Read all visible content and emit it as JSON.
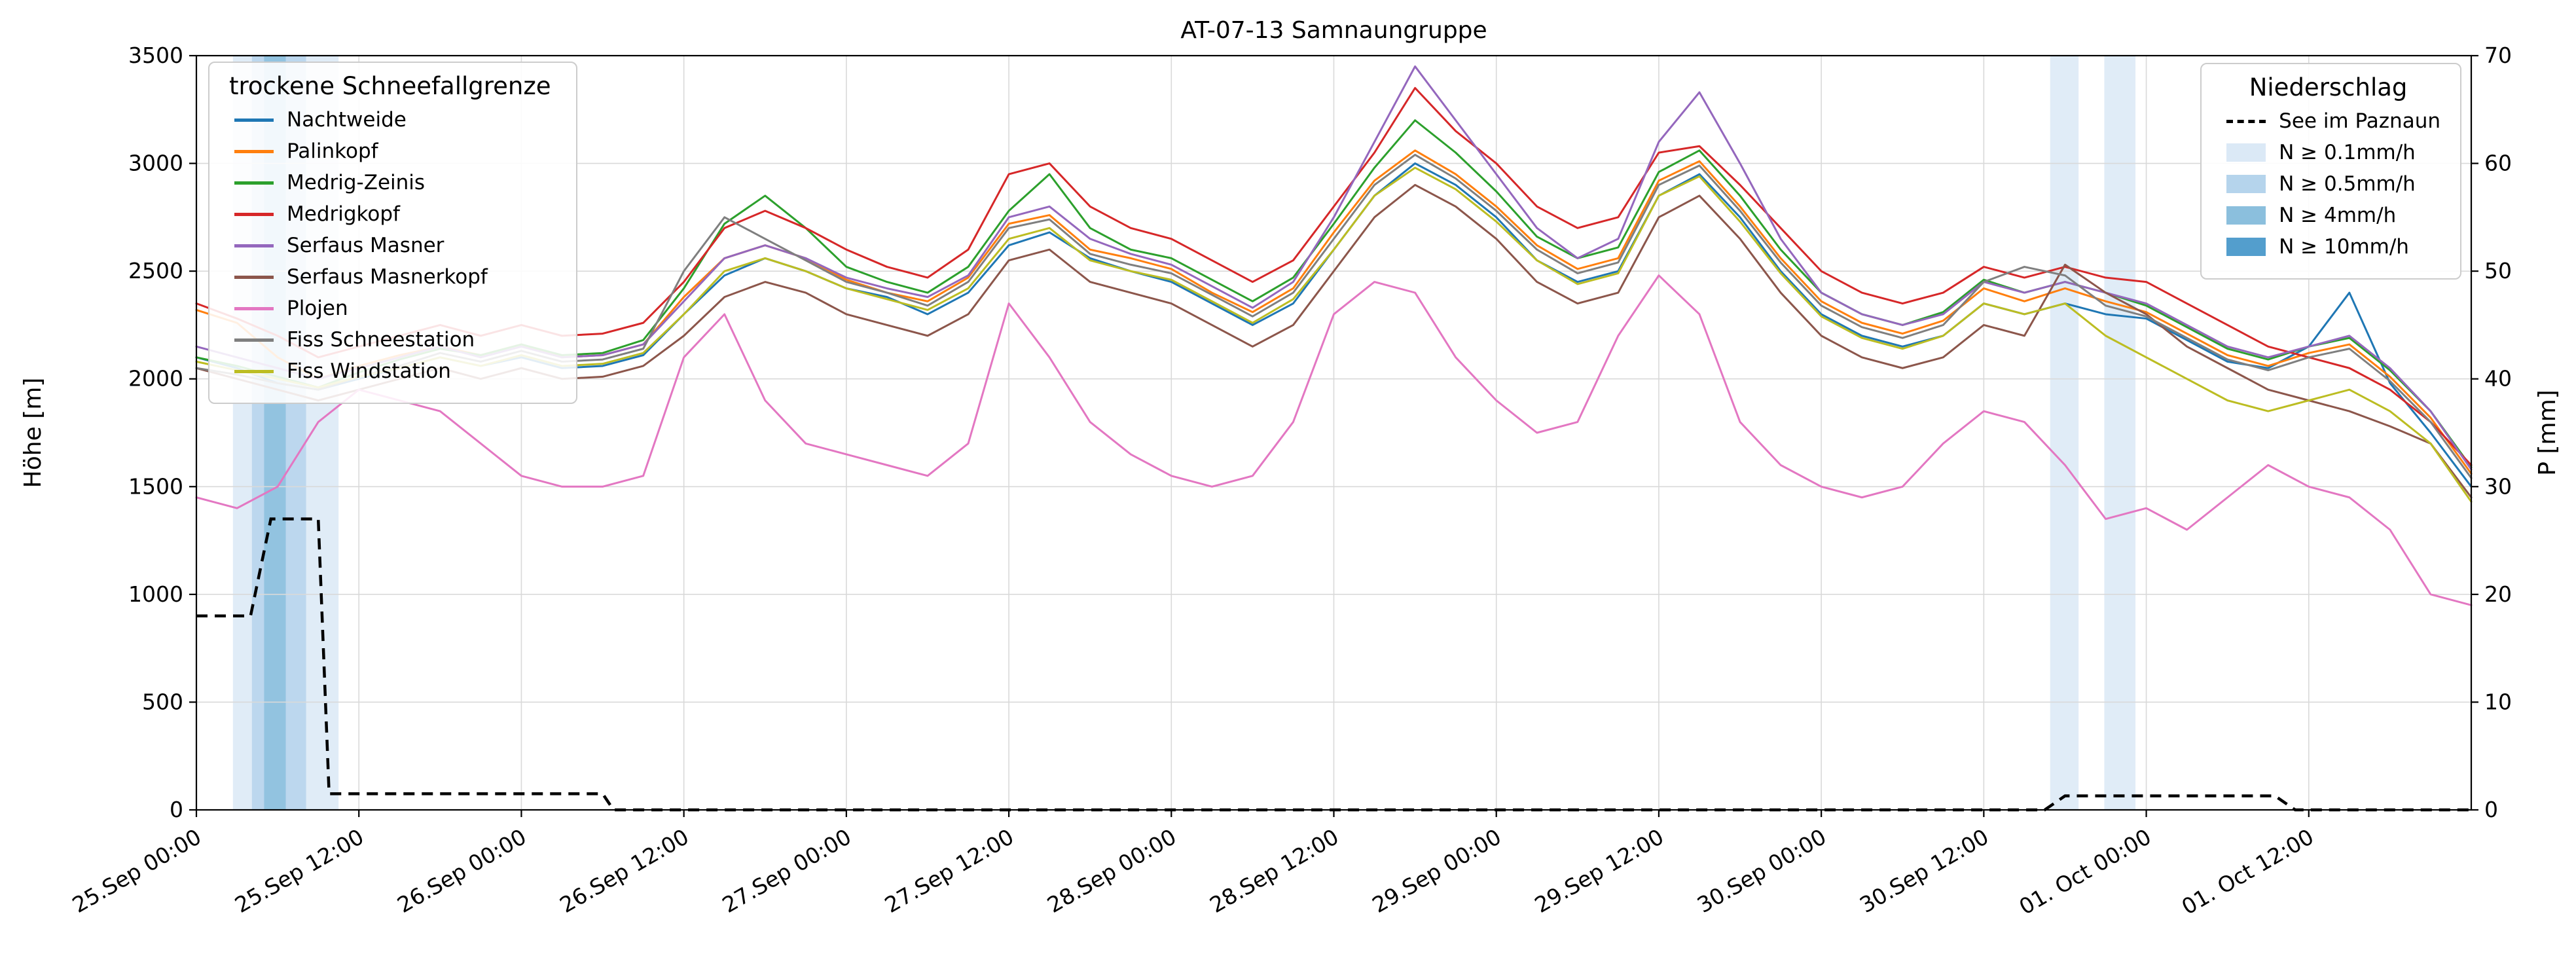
{
  "title": "AT-07-13 Samnaungruppe",
  "axes": {
    "x": {
      "tick_labels": [
        "25.Sep 00:00",
        "25.Sep 12:00",
        "26.Sep 00:00",
        "26.Sep 12:00",
        "27.Sep 00:00",
        "27.Sep 12:00",
        "28.Sep 00:00",
        "28.Sep 12:00",
        "29.Sep 00:00",
        "29.Sep 12:00",
        "30.Sep 00:00",
        "30.Sep 12:00",
        "01. Oct 00:00",
        "01. Oct 12:00"
      ],
      "tick_hours": [
        0,
        12,
        24,
        36,
        48,
        60,
        72,
        84,
        96,
        108,
        120,
        132,
        144,
        156
      ],
      "range_hours": [
        0,
        168
      ]
    },
    "y_left": {
      "label": "Höhe [m]",
      "min": 0,
      "max": 3500,
      "ticks": [
        0,
        500,
        1000,
        1500,
        2000,
        2500,
        3000,
        3500
      ]
    },
    "y_right": {
      "label": "P [mm]",
      "min": 0,
      "max": 70,
      "ticks": [
        0,
        10,
        20,
        30,
        40,
        50,
        60,
        70
      ]
    }
  },
  "legend_snowline": {
    "title": "trockene Schneefallgrenze",
    "items": [
      {
        "label": "Nachtweide",
        "color": "#1f77b4"
      },
      {
        "label": "Palinkopf",
        "color": "#ff7f0e"
      },
      {
        "label": "Medrig-Zeinis",
        "color": "#2ca02c"
      },
      {
        "label": "Medrigkopf",
        "color": "#d62728"
      },
      {
        "label": "Serfaus Masner",
        "color": "#9467bd"
      },
      {
        "label": "Serfaus Masnerkopf",
        "color": "#8c564b"
      },
      {
        "label": "Plojen",
        "color": "#e377c2"
      },
      {
        "label": "Fiss Schneestation",
        "color": "#7f7f7f"
      },
      {
        "label": "Fiss Windstation",
        "color": "#bcbd22"
      }
    ]
  },
  "legend_precip": {
    "title": "Niederschlag",
    "line_item": {
      "label": "See im Paznaun",
      "color": "#000000"
    },
    "bands": [
      {
        "label": "N ≥ 0.1mm/h",
        "color": "#dbe9f6"
      },
      {
        "label": "N ≥ 0.5mm/h",
        "color": "#b5d4ec"
      },
      {
        "label": "N ≥ 4mm/h",
        "color": "#8bbfdd"
      },
      {
        "label": "N ≥ 10mm/h",
        "color": "#539ecd"
      }
    ]
  },
  "chart_data": {
    "type": "line",
    "x_axis_unit": "hours since 25.Sep 00:00",
    "x_hours": [
      0,
      3,
      6,
      9,
      12,
      15,
      18,
      21,
      24,
      27,
      30,
      33,
      36,
      39,
      42,
      45,
      48,
      51,
      54,
      57,
      60,
      63,
      66,
      69,
      72,
      75,
      78,
      81,
      84,
      87,
      90,
      93,
      96,
      99,
      102,
      105,
      108,
      111,
      114,
      117,
      120,
      123,
      126,
      129,
      132,
      135,
      138,
      141,
      144,
      147,
      150,
      153,
      156,
      159,
      162,
      165,
      168
    ],
    "ylabel_left": "Höhe [m]",
    "ylabel_right": "P [mm]",
    "series": [
      {
        "name": "Nachtweide",
        "color": "#1f77b4",
        "values": [
          2100,
          2050,
          1980,
          1950,
          2000,
          2050,
          2100,
          2060,
          2100,
          2050,
          2060,
          2110,
          2300,
          2480,
          2560,
          2500,
          2420,
          2380,
          2300,
          2400,
          2620,
          2680,
          2560,
          2500,
          2450,
          2350,
          2250,
          2350,
          2600,
          2850,
          3000,
          2900,
          2750,
          2550,
          2450,
          2500,
          2850,
          2950,
          2750,
          2500,
          2300,
          2200,
          2150,
          2200,
          2350,
          2300,
          2350,
          2300,
          2280,
          2180,
          2080,
          2050,
          2150,
          2400,
          1980,
          1750,
          1500
        ]
      },
      {
        "name": "Palinkopf",
        "color": "#ff7f0e",
        "values": [
          2320,
          2260,
          2100,
          2000,
          2060,
          2110,
          2150,
          2110,
          2160,
          2100,
          2110,
          2160,
          2380,
          2560,
          2620,
          2560,
          2460,
          2400,
          2360,
          2470,
          2720,
          2760,
          2600,
          2560,
          2510,
          2400,
          2310,
          2420,
          2680,
          2920,
          3060,
          2950,
          2800,
          2620,
          2510,
          2560,
          2920,
          3010,
          2800,
          2560,
          2360,
          2260,
          2210,
          2270,
          2420,
          2360,
          2420,
          2360,
          2310,
          2210,
          2110,
          2060,
          2120,
          2160,
          2010,
          1820,
          1560
        ]
      },
      {
        "name": "Medrig-Zeinis",
        "color": "#2ca02c",
        "values": [
          2100,
          2060,
          2010,
          1960,
          2030,
          2090,
          2140,
          2110,
          2160,
          2110,
          2120,
          2180,
          2420,
          2720,
          2850,
          2700,
          2520,
          2450,
          2400,
          2520,
          2780,
          2950,
          2700,
          2600,
          2560,
          2460,
          2360,
          2470,
          2720,
          2980,
          3200,
          3050,
          2870,
          2660,
          2560,
          2610,
          2960,
          3060,
          2850,
          2600,
          2400,
          2300,
          2250,
          2310,
          2460,
          2400,
          2450,
          2400,
          2340,
          2240,
          2140,
          2090,
          2150,
          2190,
          2040,
          1850,
          1590
        ]
      },
      {
        "name": "Medrigkopf",
        "color": "#d62728",
        "values": [
          2350,
          2280,
          2200,
          2100,
          2150,
          2200,
          2250,
          2200,
          2250,
          2200,
          2210,
          2260,
          2450,
          2700,
          2780,
          2700,
          2600,
          2520,
          2470,
          2600,
          2950,
          3000,
          2800,
          2700,
          2650,
          2550,
          2450,
          2550,
          2800,
          3050,
          3350,
          3150,
          3000,
          2800,
          2700,
          2750,
          3050,
          3080,
          2900,
          2700,
          2500,
          2400,
          2350,
          2400,
          2520,
          2470,
          2520,
          2470,
          2450,
          2350,
          2250,
          2150,
          2100,
          2050,
          1950,
          1800,
          1600
        ]
      },
      {
        "name": "Serfaus Masner",
        "color": "#9467bd",
        "values": [
          2150,
          2100,
          2050,
          2000,
          2050,
          2100,
          2150,
          2100,
          2150,
          2100,
          2110,
          2160,
          2360,
          2560,
          2620,
          2560,
          2470,
          2420,
          2380,
          2480,
          2750,
          2800,
          2650,
          2580,
          2530,
          2430,
          2330,
          2450,
          2750,
          3100,
          3450,
          3200,
          2950,
          2700,
          2560,
          2650,
          3100,
          3330,
          3000,
          2650,
          2400,
          2300,
          2250,
          2300,
          2450,
          2400,
          2450,
          2400,
          2350,
          2250,
          2150,
          2100,
          2150,
          2200,
          2050,
          1850,
          1580
        ]
      },
      {
        "name": "Serfaus Masnerkopf",
        "color": "#8c564b",
        "values": [
          2050,
          2000,
          1950,
          1900,
          1950,
          2000,
          2050,
          2000,
          2050,
          2000,
          2010,
          2060,
          2200,
          2380,
          2450,
          2400,
          2300,
          2250,
          2200,
          2300,
          2550,
          2600,
          2450,
          2400,
          2350,
          2250,
          2150,
          2250,
          2500,
          2750,
          2900,
          2800,
          2650,
          2450,
          2350,
          2400,
          2750,
          2850,
          2650,
          2400,
          2200,
          2100,
          2050,
          2100,
          2250,
          2200,
          2530,
          2400,
          2300,
          2150,
          2050,
          1950,
          1900,
          1850,
          1780,
          1700,
          1450
        ]
      },
      {
        "name": "Plojen",
        "color": "#e377c2",
        "values": [
          1450,
          1400,
          1500,
          1800,
          1950,
          1900,
          1850,
          1700,
          1550,
          1500,
          1500,
          1550,
          2100,
          2300,
          1900,
          1700,
          1650,
          1600,
          1550,
          1700,
          2350,
          2100,
          1800,
          1650,
          1550,
          1500,
          1550,
          1800,
          2300,
          2450,
          2400,
          2100,
          1900,
          1750,
          1800,
          2200,
          2480,
          2300,
          1800,
          1600,
          1500,
          1450,
          1500,
          1700,
          1850,
          1800,
          1600,
          1350,
          1400,
          1300,
          1450,
          1600,
          1500,
          1450,
          1300,
          1000,
          950
        ]
      },
      {
        "name": "Fiss Schneestation",
        "color": "#7f7f7f",
        "values": [
          2050,
          2020,
          1980,
          1950,
          2010,
          2060,
          2120,
          2080,
          2130,
          2080,
          2090,
          2140,
          2500,
          2750,
          2650,
          2550,
          2450,
          2400,
          2340,
          2450,
          2700,
          2740,
          2580,
          2530,
          2490,
          2390,
          2290,
          2400,
          2650,
          2900,
          3040,
          2930,
          2780,
          2600,
          2490,
          2540,
          2900,
          2990,
          2780,
          2540,
          2340,
          2240,
          2190,
          2250,
          2450,
          2520,
          2480,
          2340,
          2290,
          2190,
          2090,
          2040,
          2100,
          2140,
          1990,
          1800,
          1540
        ]
      },
      {
        "name": "Fiss Windstation",
        "color": "#bcbd22",
        "values": [
          2080,
          2040,
          2000,
          1960,
          2010,
          2050,
          2100,
          2060,
          2110,
          2060,
          2070,
          2120,
          2300,
          2500,
          2560,
          2500,
          2420,
          2370,
          2320,
          2420,
          2650,
          2700,
          2550,
          2500,
          2460,
          2360,
          2260,
          2370,
          2600,
          2850,
          2980,
          2880,
          2730,
          2550,
          2440,
          2490,
          2850,
          2940,
          2730,
          2490,
          2290,
          2190,
          2140,
          2200,
          2350,
          2300,
          2350,
          2200,
          2100,
          2000,
          1900,
          1850,
          1900,
          1950,
          1850,
          1700,
          1430
        ]
      }
    ],
    "lake_series": {
      "name": "See im Paznaun",
      "axis": "right",
      "style": "dashed",
      "color": "#000000",
      "x_hours": [
        0,
        4,
        5.5,
        9,
        9.8,
        30,
        30.8,
        136.5,
        138,
        153.5,
        155,
        168
      ],
      "values": [
        18,
        18,
        27,
        27,
        1.5,
        1.5,
        0,
        0,
        1.3,
        1.3,
        0,
        0
      ]
    },
    "precip_spans": [
      {
        "start_h": 2.7,
        "end_h": 10.5,
        "level": "N ≥ 0.1mm/h",
        "color": "#dbe9f6"
      },
      {
        "start_h": 4.1,
        "end_h": 8.1,
        "level": "N ≥ 0.5mm/h",
        "color": "#b5d4ec"
      },
      {
        "start_h": 5.0,
        "end_h": 6.6,
        "level": "N ≥ 4mm/h",
        "color": "#8bbfdd"
      },
      {
        "start_h": 136.9,
        "end_h": 139.0,
        "level": "N ≥ 0.1mm/h",
        "color": "#dbe9f6"
      },
      {
        "start_h": 140.9,
        "end_h": 143.2,
        "level": "N ≥ 0.1mm/h",
        "color": "#dbe9f6"
      }
    ]
  }
}
